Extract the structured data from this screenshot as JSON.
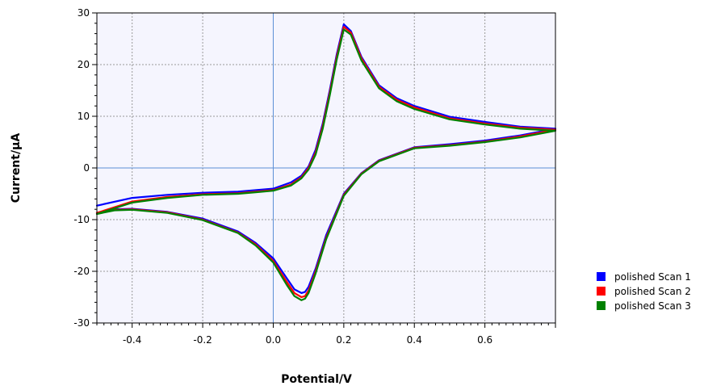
{
  "chart_data": {
    "type": "line",
    "title": "",
    "xlabel": "Potential/V",
    "ylabel": "Current/μA",
    "xlim": [
      -0.5,
      0.8
    ],
    "ylim": [
      -30,
      30
    ],
    "x_ticks": [
      -0.4,
      -0.2,
      0.0,
      0.2,
      0.4,
      0.6
    ],
    "x_tick_labels": [
      "-0.4",
      "-0.2",
      "0.0",
      "0.2",
      "0.4",
      "0.6"
    ],
    "y_ticks": [
      -30,
      -20,
      -10,
      0,
      10,
      20,
      30
    ],
    "y_tick_labels": [
      "-30",
      "-20",
      "-10",
      "0",
      "10",
      "20",
      "30"
    ],
    "grid": true,
    "legend_position": "bottom-right, outside plot",
    "colors": {
      "plot_background": "#f5f5fe",
      "grid": "#999999",
      "zero_lines": "#5b8fd6"
    },
    "series": [
      {
        "name": "polished Scan 1",
        "color": "#0000ff",
        "x": [
          -0.5,
          -0.4,
          -0.3,
          -0.2,
          -0.1,
          -0.05,
          0.0,
          0.05,
          0.08,
          0.1,
          0.12,
          0.14,
          0.16,
          0.18,
          0.2,
          0.22,
          0.25,
          0.3,
          0.35,
          0.4,
          0.5,
          0.6,
          0.7,
          0.8,
          0.8,
          0.7,
          0.6,
          0.5,
          0.4,
          0.3,
          0.25,
          0.2,
          0.15,
          0.12,
          0.1,
          0.09,
          0.08,
          0.06,
          0.04,
          0.0,
          -0.05,
          -0.1,
          -0.2,
          -0.3,
          -0.4,
          -0.45,
          -0.5
        ],
        "y": [
          -7.3,
          -5.8,
          -5.2,
          -4.8,
          -4.6,
          -4.3,
          -4.0,
          -2.8,
          -1.5,
          0.3,
          3.5,
          8.5,
          15.0,
          22.0,
          27.8,
          26.5,
          21.5,
          16.0,
          13.5,
          12.0,
          9.9,
          8.9,
          8.0,
          7.6,
          7.6,
          6.3,
          5.3,
          4.6,
          4.0,
          1.5,
          -1.0,
          -5.0,
          -13.0,
          -19.5,
          -23.0,
          -24.0,
          -24.2,
          -23.5,
          -21.5,
          -17.5,
          -14.5,
          -12.3,
          -9.8,
          -8.5,
          -7.9,
          -8.0,
          -8.7
        ]
      },
      {
        "name": "polished Scan 2",
        "color": "#ff0000",
        "x": [
          -0.5,
          -0.4,
          -0.3,
          -0.2,
          -0.1,
          -0.05,
          0.0,
          0.05,
          0.08,
          0.1,
          0.12,
          0.14,
          0.16,
          0.18,
          0.2,
          0.22,
          0.25,
          0.3,
          0.35,
          0.4,
          0.5,
          0.6,
          0.7,
          0.8,
          0.8,
          0.7,
          0.6,
          0.5,
          0.4,
          0.3,
          0.25,
          0.2,
          0.15,
          0.12,
          0.1,
          0.09,
          0.08,
          0.06,
          0.04,
          0.0,
          -0.05,
          -0.1,
          -0.2,
          -0.3,
          -0.4,
          -0.45,
          -0.5
        ],
        "y": [
          -8.7,
          -6.5,
          -5.6,
          -5.1,
          -4.9,
          -4.6,
          -4.3,
          -3.2,
          -1.8,
          0.0,
          3.0,
          8.0,
          14.5,
          21.5,
          27.3,
          26.2,
          21.2,
          15.7,
          13.2,
          11.7,
          9.6,
          8.6,
          7.8,
          7.4,
          7.4,
          6.1,
          5.1,
          4.4,
          3.9,
          1.4,
          -1.1,
          -5.2,
          -13.5,
          -20.0,
          -23.7,
          -24.8,
          -25.0,
          -24.2,
          -22.2,
          -18.0,
          -14.8,
          -12.5,
          -10.0,
          -8.6,
          -8.0,
          -8.1,
          -8.8
        ]
      },
      {
        "name": "polished Scan 3",
        "color": "#008000",
        "x": [
          -0.5,
          -0.4,
          -0.3,
          -0.2,
          -0.1,
          -0.05,
          0.0,
          0.05,
          0.08,
          0.1,
          0.12,
          0.14,
          0.16,
          0.18,
          0.2,
          0.22,
          0.25,
          0.3,
          0.35,
          0.4,
          0.5,
          0.6,
          0.7,
          0.8,
          0.8,
          0.7,
          0.6,
          0.5,
          0.4,
          0.3,
          0.25,
          0.2,
          0.15,
          0.12,
          0.1,
          0.09,
          0.08,
          0.06,
          0.04,
          0.0,
          -0.05,
          -0.1,
          -0.2,
          -0.3,
          -0.4,
          -0.45,
          -0.5
        ],
        "y": [
          -8.9,
          -6.7,
          -5.8,
          -5.2,
          -5.0,
          -4.7,
          -4.4,
          -3.4,
          -2.0,
          -0.3,
          2.6,
          7.5,
          14.0,
          21.0,
          26.8,
          25.8,
          20.8,
          15.4,
          12.9,
          11.4,
          9.4,
          8.4,
          7.6,
          7.2,
          7.2,
          5.9,
          5.0,
          4.3,
          3.8,
          1.3,
          -1.2,
          -5.4,
          -13.8,
          -20.4,
          -24.2,
          -25.3,
          -25.6,
          -24.8,
          -22.8,
          -18.3,
          -15.0,
          -12.6,
          -10.1,
          -8.7,
          -8.1,
          -8.2,
          -8.9
        ]
      }
    ]
  }
}
